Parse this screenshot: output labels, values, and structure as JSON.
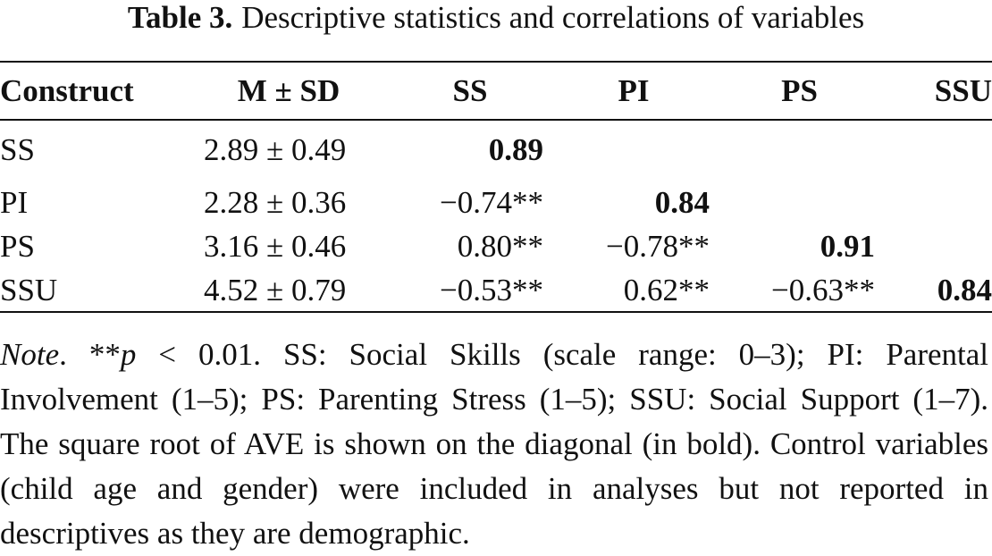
{
  "caption": {
    "label": "Table 3.",
    "title": "Descriptive statistics and correlations of variables"
  },
  "table": {
    "headers": [
      "Construct",
      "M ± SD",
      "SS",
      "PI",
      "PS",
      "SSU"
    ],
    "rows": [
      {
        "construct": "SS",
        "msd": "2.89 ± 0.49",
        "cells": [
          "0.89",
          "",
          "",
          ""
        ]
      },
      {
        "construct": "PI",
        "msd": "2.28 ± 0.36",
        "cells": [
          "−0.74**",
          "0.84",
          "",
          ""
        ]
      },
      {
        "construct": "PS",
        "msd": "3.16 ± 0.46",
        "cells": [
          "0.80**",
          "−0.78**",
          "0.91",
          ""
        ]
      },
      {
        "construct": "SSU",
        "msd": "4.52 ± 0.79",
        "cells": [
          "−0.53**",
          "0.62**",
          "−0.63**",
          "0.84"
        ]
      }
    ]
  },
  "note": {
    "lead": "Note",
    "sig_stars": "**",
    "p_symbol": "p",
    "body": " < 0.01. SS: Social Skills (scale range: 0–3); PI: Parental Involvement (1–5); PS: Parenting Stress (1–5); SSU: Social Sup­port (1–7). The square root of AVE is shown on the diagonal (in bold). Control variables (child age and gender) were included in analyses but not reported in descriptives as they are demographic."
  }
}
